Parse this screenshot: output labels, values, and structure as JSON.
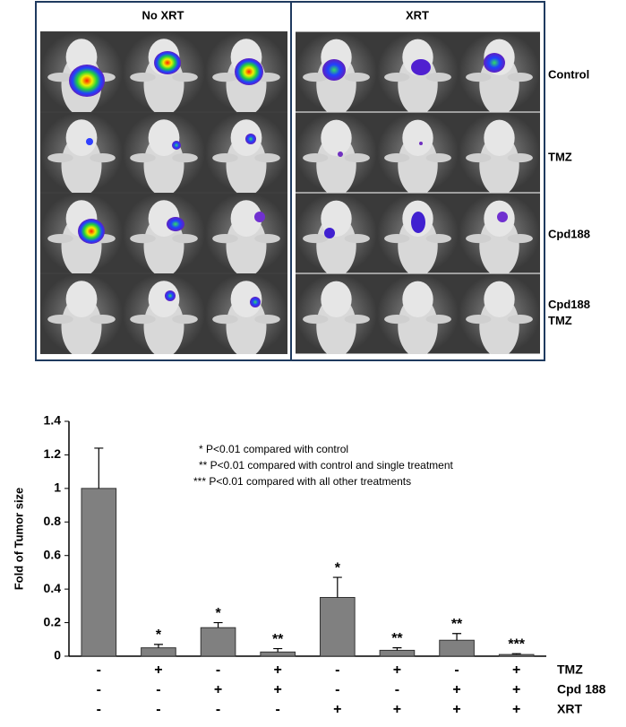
{
  "image_panel": {
    "groups": [
      "No XRT",
      "XRT"
    ],
    "rows": [
      "Control",
      "TMZ",
      "Cpd188",
      "Cpd188\nTMZ"
    ]
  },
  "chart_data": {
    "type": "bar",
    "categories": [
      null,
      null,
      null,
      null,
      null,
      null,
      null,
      null
    ],
    "values": [
      1.0,
      0.05,
      0.17,
      0.025,
      0.35,
      0.035,
      0.095,
      0.01
    ],
    "errors": [
      0.24,
      0.02,
      0.03,
      0.02,
      0.12,
      0.015,
      0.04,
      0.005
    ],
    "significance": [
      null,
      "*",
      "*",
      "**",
      "*",
      "**",
      "**",
      "***"
    ],
    "color": "#808080",
    "y_label": "Fold of Tumor size",
    "ylim": [
      0,
      1.4
    ],
    "yticks": [
      0,
      0.2,
      0.4,
      0.6,
      0.8,
      1,
      1.2,
      1.4
    ],
    "annotations": [
      "*  P<0.01 compared with  control",
      "**  P<0.01 compared with  control  and single treatment",
      "*** P<0.01 compared with  all other treatments"
    ],
    "treatments": [
      {
        "name": "TMZ",
        "signs": [
          "-",
          "+",
          "-",
          "+",
          "-",
          "+",
          "-",
          "+"
        ]
      },
      {
        "name": "Cpd 188",
        "signs": [
          "-",
          "-",
          "+",
          "+",
          "-",
          "-",
          "+",
          "+"
        ]
      },
      {
        "name": "XRT",
        "signs": [
          "-",
          "-",
          "-",
          "-",
          "+",
          "+",
          "+",
          "+"
        ]
      }
    ]
  }
}
